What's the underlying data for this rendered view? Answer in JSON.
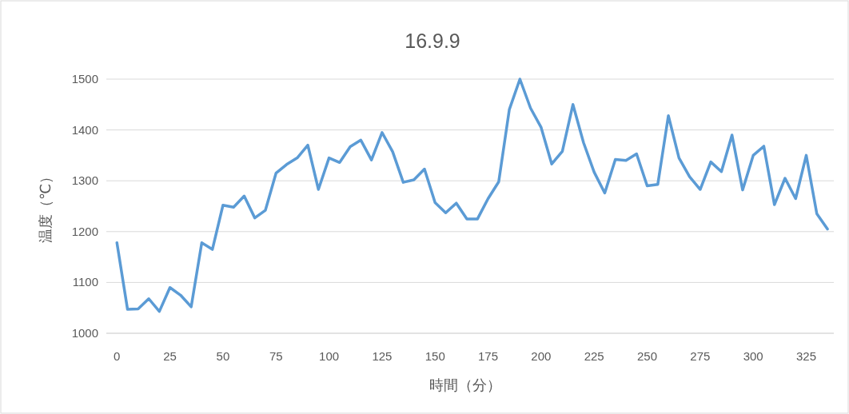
{
  "chart_data": {
    "type": "line",
    "title": "16.9.9",
    "xlabel": "時間（分）",
    "ylabel": "温度（℃）",
    "x": [
      0,
      5,
      10,
      15,
      20,
      25,
      30,
      35,
      40,
      45,
      50,
      55,
      60,
      65,
      70,
      75,
      80,
      85,
      90,
      95,
      100,
      105,
      110,
      115,
      120,
      125,
      130,
      135,
      140,
      145,
      150,
      155,
      160,
      165,
      170,
      175,
      180,
      185,
      190,
      195,
      200,
      205,
      210,
      215,
      220,
      225,
      230,
      235,
      240,
      245,
      250,
      255,
      260,
      265,
      270,
      275,
      280,
      285,
      290,
      295,
      300,
      305,
      310,
      315,
      320,
      325,
      330,
      335
    ],
    "series": [
      {
        "color": "#5b9bd5",
        "values": [
          1178,
          1047,
          1048,
          1068,
          1043,
          1090,
          1075,
          1052,
          1178,
          1165,
          1252,
          1248,
          1270,
          1227,
          1242,
          1315,
          1332,
          1345,
          1370,
          1283,
          1345,
          1336,
          1367,
          1380,
          1341,
          1395,
          1357,
          1297,
          1302,
          1323,
          1257,
          1237,
          1256,
          1225,
          1225,
          1265,
          1298,
          1440,
          1500,
          1443,
          1405,
          1333,
          1358,
          1450,
          1375,
          1317,
          1276,
          1342,
          1340,
          1353,
          1290,
          1293,
          1428,
          1345,
          1308,
          1283,
          1337,
          1318,
          1390,
          1282,
          1350,
          1368,
          1253,
          1305,
          1265,
          1350,
          1235,
          1205
        ]
      }
    ],
    "xlim": [
      -5,
      338
    ],
    "xticks": [
      0,
      25,
      50,
      75,
      100,
      125,
      150,
      175,
      200,
      225,
      250,
      275,
      300,
      325
    ],
    "ylim": [
      1000,
      1500
    ],
    "yticks": [
      1000,
      1100,
      1200,
      1300,
      1400,
      1500
    ],
    "grid": "y",
    "marker": "none",
    "line_style": "solid"
  }
}
